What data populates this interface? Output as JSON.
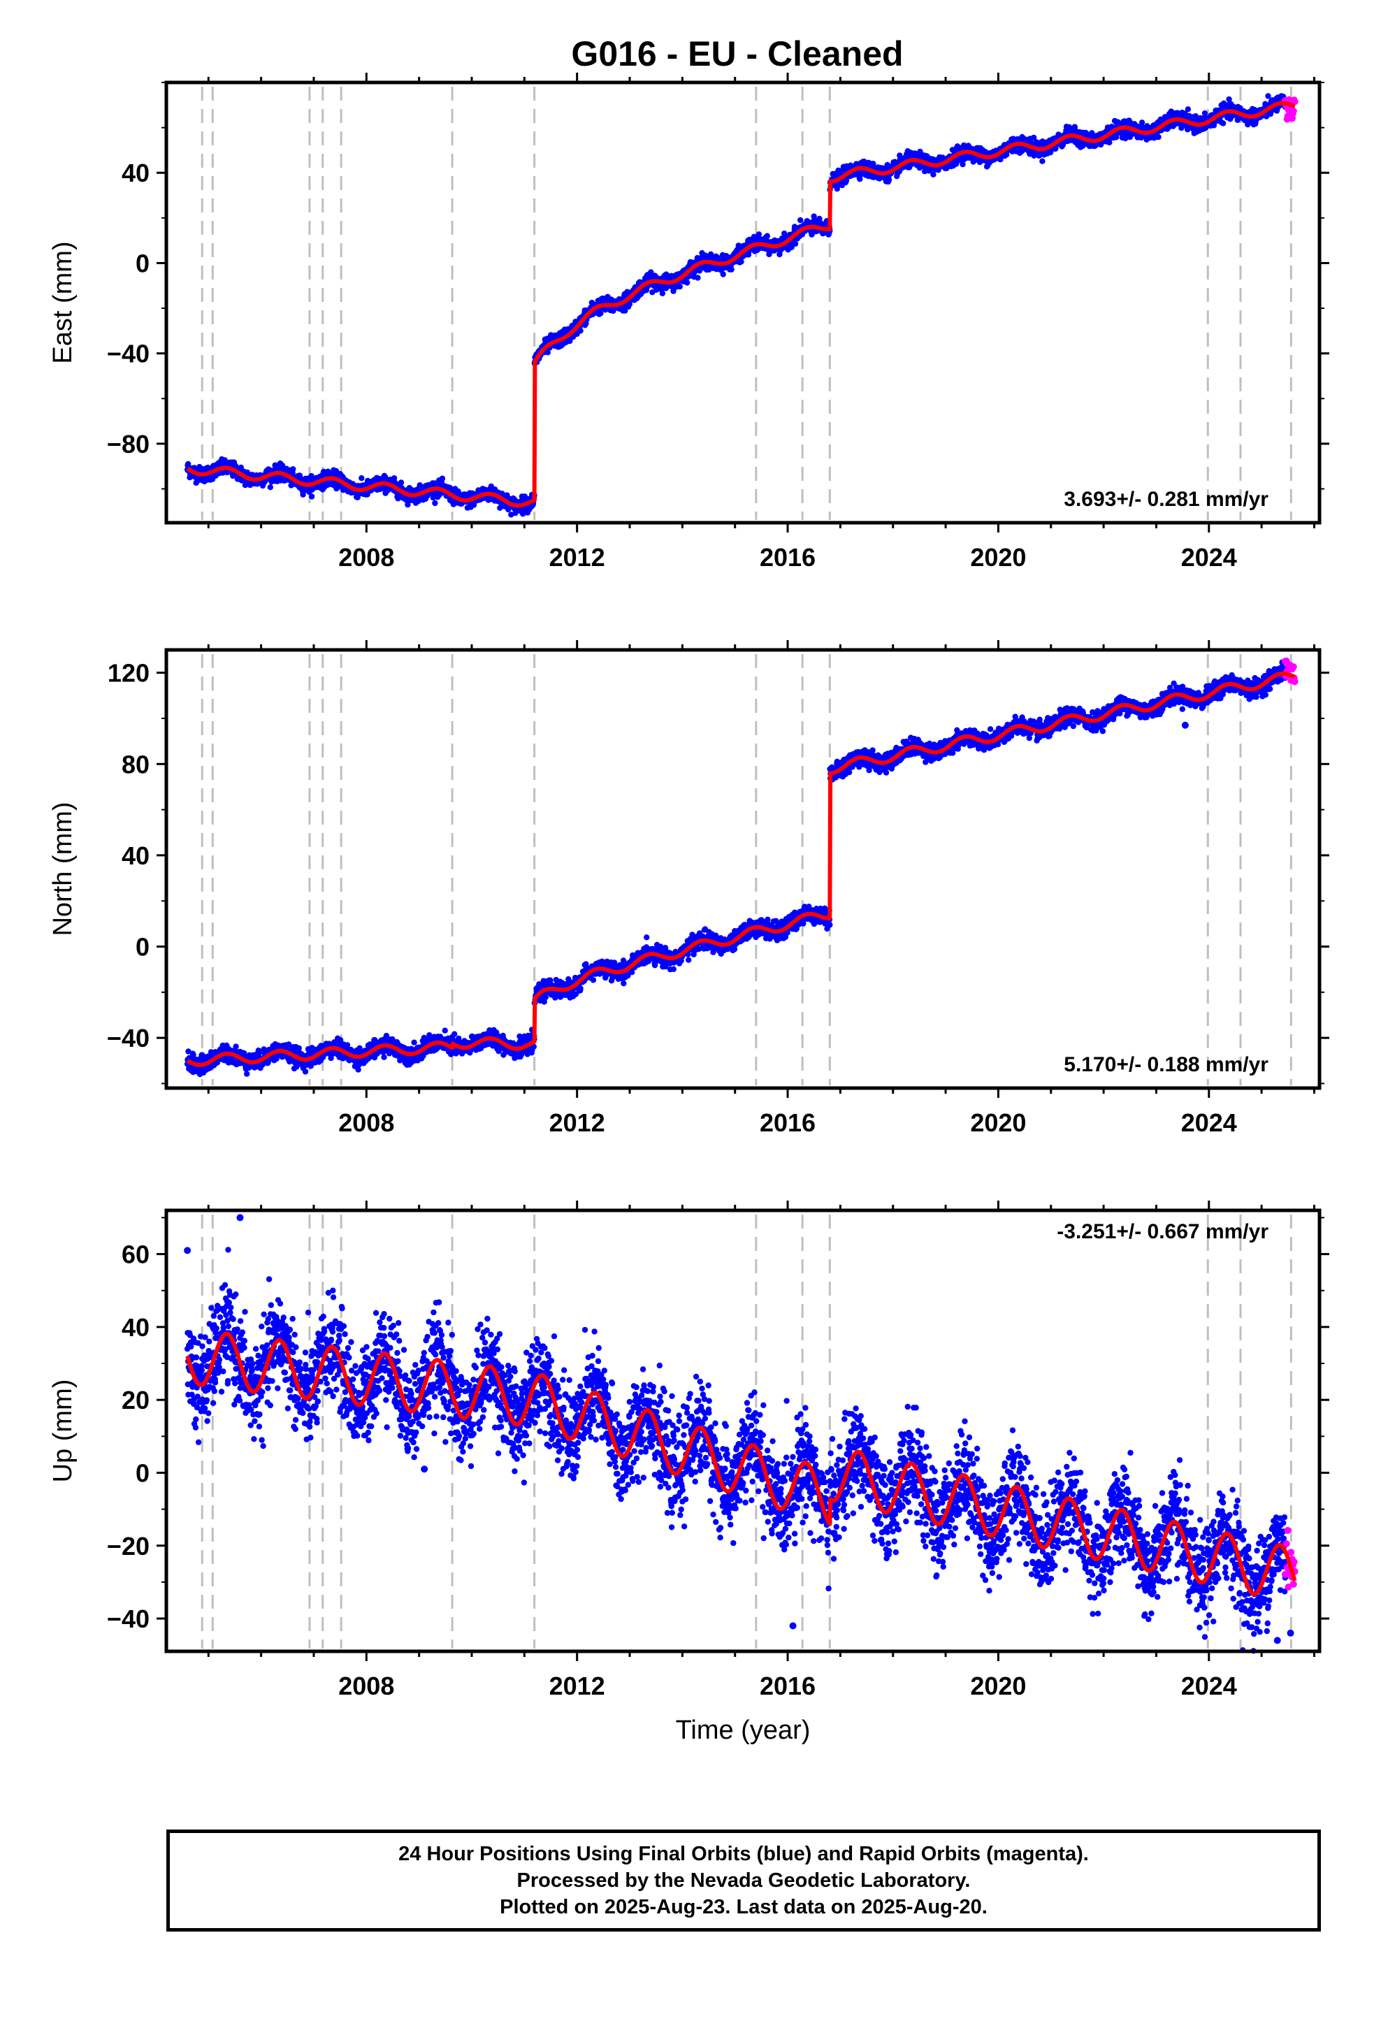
{
  "title": "G016  - EU - Cleaned",
  "colors": {
    "final_orbits": "#0000ff",
    "rapid_orbits": "#ff00ff",
    "model": "#ff0000",
    "event_lines": "#bfbfbf"
  },
  "event_years": [
    2004.88,
    2005.08,
    2006.92,
    2007.17,
    2007.52,
    2009.63,
    2011.19,
    2015.4,
    2016.28,
    2016.8,
    2023.98,
    2024.6,
    2025.56
  ],
  "chart_data": [
    {
      "type": "scatter",
      "name": "east",
      "ylabel": "East (mm)",
      "xlim": [
        2004.2,
        2026.1
      ],
      "ylim": [
        -115,
        80
      ],
      "yticks": [
        -80,
        -40,
        0,
        40
      ],
      "xticks": [
        2008,
        2012,
        2016,
        2020,
        2024
      ],
      "rate_label": "3.693+/- 0.281 mm/yr",
      "grid": false,
      "model": {
        "segments": [
          {
            "x0": 2004.6,
            "x1": 2011.19,
            "y0": -91,
            "slope": -2.3
          },
          {
            "x0": 2011.19,
            "x1": 2016.8,
            "y0": -45,
            "slope": 7.5,
            "decay": 20,
            "tau": 0.9
          },
          {
            "x0": 2016.8,
            "x1": 2025.63,
            "y0": 38,
            "slope": 3.6
          }
        ],
        "seasonal_amp": 2.0,
        "noise": 1.6
      },
      "rapid_range": [
        2025.45,
        2025.63
      ],
      "rapid_values": [
        62,
        74
      ]
    },
    {
      "type": "scatter",
      "name": "north",
      "ylabel": "North (mm)",
      "xlim": [
        2004.2,
        2026.1
      ],
      "ylim": [
        -62,
        130
      ],
      "yticks": [
        -40,
        0,
        40,
        80,
        120
      ],
      "xticks": [
        2008,
        2012,
        2016,
        2020,
        2024
      ],
      "rate_label": "5.170+/- 0.188 mm/yr",
      "grid": false,
      "model": {
        "segments": [
          {
            "x0": 2004.6,
            "x1": 2009.63,
            "y0": -50,
            "slope": 1.2
          },
          {
            "x0": 2009.63,
            "x1": 2011.19,
            "y0": -42,
            "slope": -0.5
          },
          {
            "x0": 2011.19,
            "x1": 2016.8,
            "y0": -24,
            "slope": 5.8,
            "decay": 6,
            "tau": 0.6
          },
          {
            "x0": 2016.8,
            "x1": 2025.63,
            "y0": 78,
            "slope": 4.6
          }
        ],
        "seasonal_amp": 2.2,
        "noise": 1.8
      },
      "outliers": [
        [
          2023.55,
          97
        ]
      ],
      "rapid_range": [
        2025.45,
        2025.63
      ],
      "rapid_values": [
        116,
        126
      ]
    },
    {
      "type": "scatter",
      "name": "up",
      "ylabel": "Up (mm)",
      "xlabel": "Time (year)",
      "xlim": [
        2004.2,
        2026.1
      ],
      "ylim": [
        -49,
        72
      ],
      "yticks": [
        -40,
        -20,
        0,
        20,
        40,
        60
      ],
      "xticks": [
        2008,
        2012,
        2016,
        2020,
        2024
      ],
      "rate_label": "-3.251+/- 0.667 mm/yr",
      "grid": false,
      "model": {
        "segments": [
          {
            "x0": 2004.6,
            "x1": 2011.19,
            "y0": 32,
            "slope": -1.8
          },
          {
            "x0": 2011.19,
            "x1": 2016.8,
            "y0": 20,
            "slope": -4.8
          },
          {
            "x0": 2016.8,
            "x1": 2025.63,
            "y0": 0,
            "slope": -3.2
          }
        ],
        "seasonal_amp": 7.5,
        "noise": 6.5
      },
      "outliers": [
        [
          2005.6,
          70
        ],
        [
          2004.6,
          61
        ],
        [
          2009.1,
          1
        ],
        [
          2016.1,
          -42
        ],
        [
          2025.3,
          -46
        ],
        [
          2025.55,
          -44
        ]
      ],
      "rapid_range": [
        2025.45,
        2025.63
      ],
      "rapid_values": [
        -33,
        -14
      ]
    }
  ],
  "footer": {
    "line1": "24 Hour Positions Using Final Orbits (blue) and Rapid Orbits (magenta).",
    "line2": "Processed by the Nevada Geodetic Laboratory.",
    "line3": "Plotted on 2025-Aug-23. Last data on 2025-Aug-20."
  }
}
